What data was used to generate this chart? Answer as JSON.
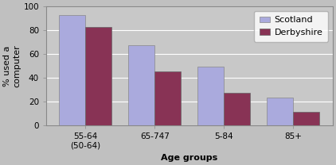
{
  "categories": [
    "55-64\n(50-64)",
    "65-747",
    "5-84",
    "85+"
  ],
  "scotland_values": [
    93,
    67,
    49,
    23
  ],
  "derbyshire_values": [
    83,
    45,
    27,
    11
  ],
  "scotland_color": "#aaaadd",
  "derbyshire_color": "#883355",
  "ylabel": "% used a\ncomputer",
  "xlabel": "Age groups",
  "ylim": [
    0,
    100
  ],
  "yticks": [
    0,
    20,
    40,
    60,
    80,
    100
  ],
  "legend_labels": [
    "Scotland",
    "Derbyshire"
  ],
  "plot_bg_color": "#c8c8c8",
  "fig_bg_color": "#c0c0c0",
  "bar_width": 0.38,
  "label_fontsize": 8,
  "tick_fontsize": 7.5,
  "legend_fontsize": 8
}
